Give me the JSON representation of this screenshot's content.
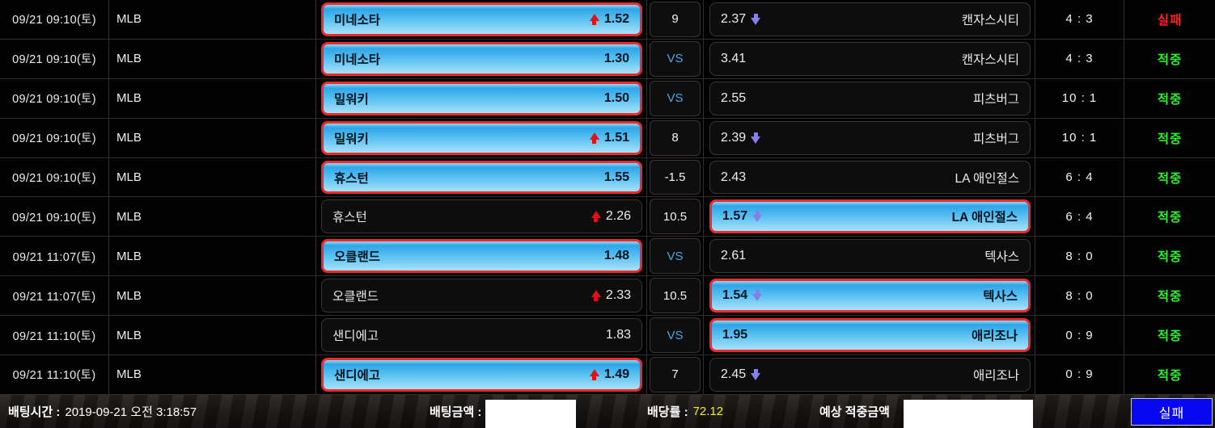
{
  "table": {
    "rows": [
      {
        "datetime": "09/21 09:10(토)",
        "league": "MLB",
        "home": {
          "team": "미네소타",
          "odds": "1.52",
          "trend": "up",
          "selected": true
        },
        "handicap": "9",
        "away": {
          "odds": "2.37",
          "trend": "down",
          "team": "캔자스시티",
          "selected": false
        },
        "score": "4 : 3",
        "result": {
          "text": "실패",
          "status": "fail"
        }
      },
      {
        "datetime": "09/21 09:10(토)",
        "league": "MLB",
        "home": {
          "team": "미네소타",
          "odds": "1.30",
          "trend": null,
          "selected": true
        },
        "handicap": "VS",
        "away": {
          "odds": "3.41",
          "trend": null,
          "team": "캔자스시티",
          "selected": false
        },
        "score": "4 : 3",
        "result": {
          "text": "적중",
          "status": "hit"
        }
      },
      {
        "datetime": "09/21 09:10(토)",
        "league": "MLB",
        "home": {
          "team": "밀워키",
          "odds": "1.50",
          "trend": null,
          "selected": true
        },
        "handicap": "VS",
        "away": {
          "odds": "2.55",
          "trend": null,
          "team": "피츠버그",
          "selected": false
        },
        "score": "10 : 1",
        "result": {
          "text": "적중",
          "status": "hit"
        }
      },
      {
        "datetime": "09/21 09:10(토)",
        "league": "MLB",
        "home": {
          "team": "밀워키",
          "odds": "1.51",
          "trend": "up",
          "selected": true
        },
        "handicap": "8",
        "away": {
          "odds": "2.39",
          "trend": "down",
          "team": "피츠버그",
          "selected": false
        },
        "score": "10 : 1",
        "result": {
          "text": "적중",
          "status": "hit"
        }
      },
      {
        "datetime": "09/21 09:10(토)",
        "league": "MLB",
        "home": {
          "team": "휴스턴",
          "odds": "1.55",
          "trend": null,
          "selected": true
        },
        "handicap": "-1.5",
        "away": {
          "odds": "2.43",
          "trend": null,
          "team": "LA 애인절스",
          "selected": false
        },
        "score": "6 : 4",
        "result": {
          "text": "적중",
          "status": "hit"
        }
      },
      {
        "datetime": "09/21 09:10(토)",
        "league": "MLB",
        "home": {
          "team": "휴스턴",
          "odds": "2.26",
          "trend": "up",
          "selected": false
        },
        "handicap": "10.5",
        "away": {
          "odds": "1.57",
          "trend": "down",
          "team": "LA 애인절스",
          "selected": true
        },
        "score": "6 : 4",
        "result": {
          "text": "적중",
          "status": "hit"
        }
      },
      {
        "datetime": "09/21 11:07(토)",
        "league": "MLB",
        "home": {
          "team": "오클랜드",
          "odds": "1.48",
          "trend": null,
          "selected": true
        },
        "handicap": "VS",
        "away": {
          "odds": "2.61",
          "trend": null,
          "team": "텍사스",
          "selected": false
        },
        "score": "8 : 0",
        "result": {
          "text": "적중",
          "status": "hit"
        }
      },
      {
        "datetime": "09/21 11:07(토)",
        "league": "MLB",
        "home": {
          "team": "오클랜드",
          "odds": "2.33",
          "trend": "up",
          "selected": false
        },
        "handicap": "10.5",
        "away": {
          "odds": "1.54",
          "trend": "down",
          "team": "텍사스",
          "selected": true
        },
        "score": "8 : 0",
        "result": {
          "text": "적중",
          "status": "hit"
        }
      },
      {
        "datetime": "09/21 11:10(토)",
        "league": "MLB",
        "home": {
          "team": "샌디에고",
          "odds": "1.83",
          "trend": null,
          "selected": false
        },
        "handicap": "VS",
        "away": {
          "odds": "1.95",
          "trend": null,
          "team": "애리조나",
          "selected": true
        },
        "score": "0 : 9",
        "result": {
          "text": "적중",
          "status": "hit"
        }
      },
      {
        "datetime": "09/21 11:10(토)",
        "league": "MLB",
        "home": {
          "team": "샌디에고",
          "odds": "1.49",
          "trend": "up",
          "selected": true
        },
        "handicap": "7",
        "away": {
          "odds": "2.45",
          "trend": "down",
          "team": "애리조나",
          "selected": false
        },
        "score": "0 : 9",
        "result": {
          "text": "적중",
          "status": "hit"
        }
      }
    ]
  },
  "footer": {
    "bet_time_label": "배팅시간 :",
    "bet_time_value": "2019-09-21 오전 3:18:57",
    "bet_amount_label": "배팅금액 :",
    "odds_label": "배당률 :",
    "odds_value": "72.12",
    "expected_label": "예상 적중금액",
    "button_label": "실패"
  },
  "colors": {
    "selected_border": "#ee2b2b",
    "selected_blue_top": "#2ea5e8",
    "selected_blue_bottom": "#a9e1fa",
    "result_hit": "#2bf02b",
    "result_fail": "#ff1f1f",
    "vs_text": "#4da6e0",
    "odds_yellow": "#f0f018",
    "arrow_up": "#e01212",
    "arrow_down": "#8181e8",
    "button_blue": "#0707f2",
    "grid_line": "#332e2b"
  }
}
